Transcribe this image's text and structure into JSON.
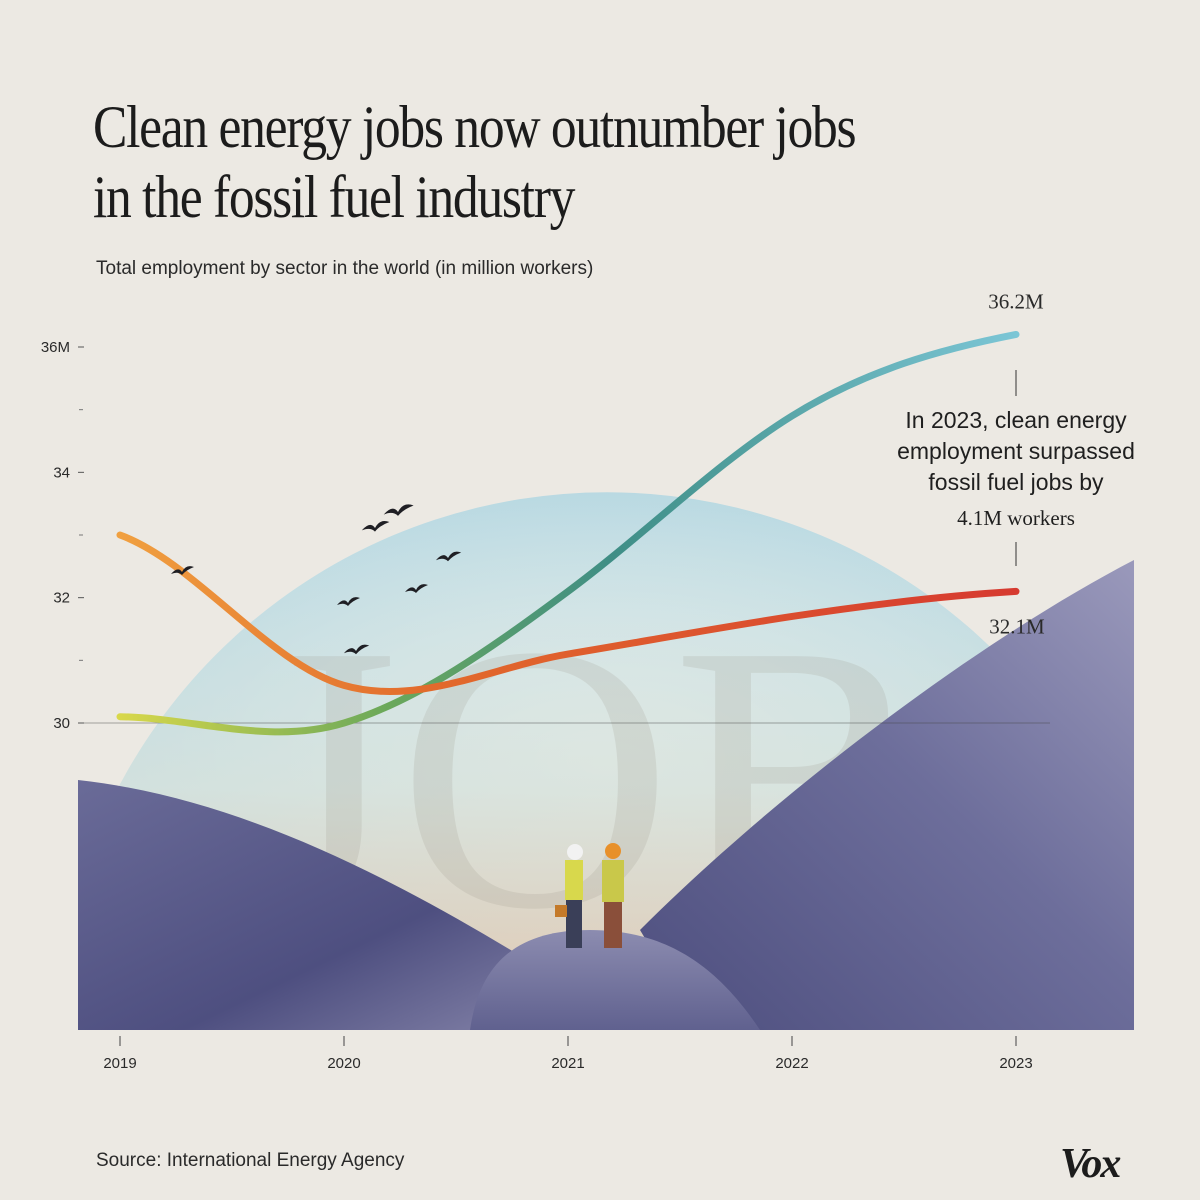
{
  "title_line1": "Clean energy jobs now outnumber jobs",
  "title_line2": "in the fossil fuel industry",
  "subtitle": "Total employment by sector  in the world (in million workers)",
  "source": "Source: International Energy Agency",
  "logo": "Vox",
  "watermark": "JOBS",
  "annotation": {
    "lines": [
      "In 2023, clean energy",
      "employment surpassed",
      "fossil fuel jobs by"
    ],
    "value": "4.1M workers"
  },
  "colors": {
    "background": "#ece9e3",
    "clean_start": "#d9d84a",
    "clean_mid": "#4e9e84",
    "clean_end": "#7cc6d6",
    "fossil_start": "#f0a040",
    "fossil_end": "#d63a30",
    "blade": "#5e5f8e"
  },
  "chart_data": {
    "type": "line",
    "title": "Clean energy jobs now outnumber jobs in the fossil fuel industry",
    "subtitle": "Total employment by sector  in the world (in million workers)",
    "x": [
      2019,
      2020,
      2021,
      2022,
      2023
    ],
    "x_tick_labels": [
      "2019",
      "2020",
      "2021",
      "2022",
      "2023"
    ],
    "ylim": [
      30,
      36
    ],
    "y_ticks": [
      30,
      32,
      34,
      36
    ],
    "y_tick_labels": [
      "30",
      "32",
      "34",
      "36M"
    ],
    "grid": false,
    "series": [
      {
        "values": [
          30.1,
          30.0,
          32.1,
          34.9,
          36.2
        ],
        "end_label": "36.2M"
      },
      {
        "values": [
          33.0,
          30.6,
          31.1,
          31.7,
          32.1
        ],
        "end_label": "32.1M"
      }
    ]
  }
}
